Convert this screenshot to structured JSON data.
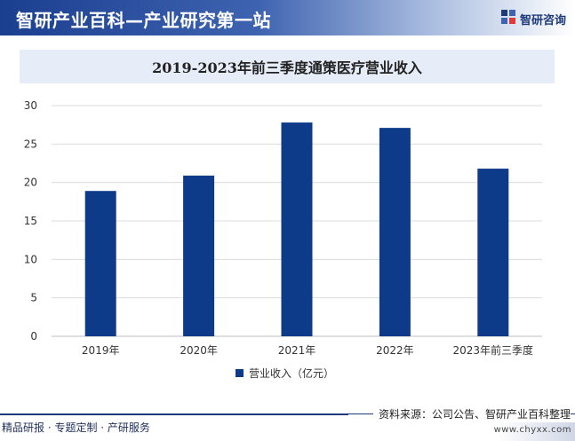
{
  "header": {
    "site_title": "智研产业百科—产业研究第一站",
    "brand_name": "智研咨询",
    "brand_icon": "zhiyan-logo-icon"
  },
  "chart_data": {
    "type": "bar",
    "title": "2019-2023年前三季度通策医疗营业收入",
    "categories": [
      "2019年",
      "2020年",
      "2021年",
      "2022年",
      "2023年前三季度"
    ],
    "series": [
      {
        "name": "营业收入（亿元）",
        "values": [
          18.9,
          20.9,
          27.8,
          27.1,
          21.8
        ],
        "color": "#0e3a8a"
      }
    ],
    "xlabel": "",
    "ylabel": "",
    "ylim": [
      0,
      30
    ],
    "yticks": [
      0,
      5,
      10,
      15,
      20,
      25,
      30
    ],
    "grid": true,
    "legend_position": "bottom"
  },
  "footer": {
    "left_text": "精品研报 · 专题定制 · 产研服务",
    "source_text": "资料来源：公司公告、智研产业百科整理",
    "url_text": "www.chyxx.com"
  }
}
